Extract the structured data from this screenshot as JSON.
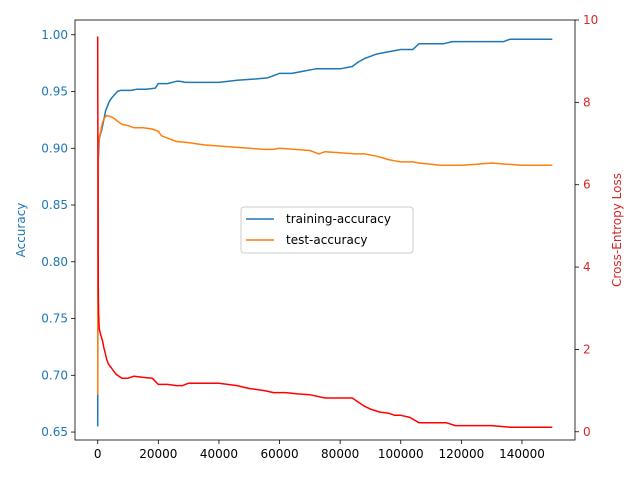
{
  "chart_data": {
    "type": "line",
    "title": "",
    "xlabel": "",
    "x_ticks": [
      0,
      20000,
      40000,
      60000,
      80000,
      100000,
      120000,
      140000
    ],
    "xlim": [
      -7500,
      157500
    ],
    "y_left": {
      "label": "Accuracy",
      "color": "#1f77b4",
      "ylim": [
        0.643,
        1.013
      ],
      "ticks": [
        "0.65",
        "0.70",
        "0.75",
        "0.80",
        "0.85",
        "0.90",
        "0.95",
        "1.00"
      ]
    },
    "y_right": {
      "label": "Cross-Entropy Loss",
      "color": "#d62728",
      "ylim": [
        -0.2,
        10.0
      ],
      "ticks": [
        "0",
        "2",
        "4",
        "6",
        "8",
        "10"
      ]
    },
    "series": [
      {
        "name": "training-accuracy",
        "axis": "left",
        "color": "#1f77b4",
        "x": [
          0,
          100,
          200,
          500,
          800,
          1200,
          1600,
          2000,
          2600,
          3200,
          3800,
          4500,
          5500,
          6500,
          7500,
          9000,
          11000,
          13000,
          16000,
          19000,
          20000,
          23000,
          26000,
          27000,
          29000,
          35000,
          40000,
          46000,
          52000,
          56000,
          60000,
          64000,
          68000,
          72000,
          76000,
          80000,
          84000,
          86000,
          88000,
          90000,
          92000,
          94000,
          96000,
          98000,
          100000,
          104000,
          106000,
          110000,
          114000,
          117000,
          120000,
          126000,
          130000,
          134000,
          136000,
          140000,
          145000,
          150000
        ],
        "values": [
          0.655,
          0.8,
          0.89,
          0.908,
          0.912,
          0.915,
          0.92,
          0.925,
          0.933,
          0.937,
          0.941,
          0.944,
          0.947,
          0.95,
          0.951,
          0.951,
          0.951,
          0.952,
          0.952,
          0.953,
          0.957,
          0.957,
          0.959,
          0.959,
          0.958,
          0.958,
          0.958,
          0.96,
          0.961,
          0.962,
          0.966,
          0.966,
          0.968,
          0.97,
          0.97,
          0.97,
          0.972,
          0.976,
          0.979,
          0.981,
          0.983,
          0.984,
          0.985,
          0.986,
          0.987,
          0.987,
          0.992,
          0.992,
          0.992,
          0.994,
          0.994,
          0.994,
          0.994,
          0.994,
          0.996,
          0.996,
          0.996,
          0.996
        ]
      },
      {
        "name": "test-accuracy",
        "axis": "left",
        "color": "#ff7f0e",
        "x": [
          0,
          100,
          200,
          500,
          1000,
          1500,
          2000,
          3000,
          4000,
          5000,
          6000,
          7000,
          8000,
          10000,
          12000,
          15000,
          18000,
          20000,
          21000,
          23000,
          26000,
          30000,
          35000,
          40000,
          45000,
          50000,
          55000,
          58000,
          60000,
          65000,
          70000,
          73000,
          75000,
          80000,
          85000,
          88000,
          92000,
          96000,
          98000,
          100000,
          104000,
          106000,
          110000,
          113000,
          116000,
          120000,
          125000,
          130000,
          135000,
          140000,
          145000,
          150000
        ],
        "values": [
          0.683,
          0.85,
          0.9,
          0.91,
          0.915,
          0.922,
          0.926,
          0.929,
          0.928,
          0.927,
          0.925,
          0.923,
          0.921,
          0.92,
          0.918,
          0.918,
          0.917,
          0.915,
          0.911,
          0.909,
          0.906,
          0.905,
          0.903,
          0.902,
          0.901,
          0.9,
          0.899,
          0.899,
          0.9,
          0.899,
          0.898,
          0.895,
          0.897,
          0.896,
          0.895,
          0.895,
          0.893,
          0.89,
          0.889,
          0.888,
          0.888,
          0.887,
          0.886,
          0.885,
          0.885,
          0.885,
          0.886,
          0.887,
          0.886,
          0.885,
          0.885,
          0.885
        ]
      },
      {
        "name": "loss",
        "axis": "right",
        "color": "#ff0000",
        "x": [
          0,
          100,
          200,
          300,
          500,
          800,
          1200,
          1600,
          2000,
          2500,
          3000,
          3500,
          4000,
          4500,
          5000,
          6000,
          7000,
          8000,
          10000,
          12000,
          15000,
          18000,
          20000,
          23000,
          26000,
          28000,
          30000,
          35000,
          40000,
          46000,
          50000,
          55000,
          58000,
          62000,
          66000,
          70000,
          75000,
          80000,
          84000,
          86000,
          88000,
          90000,
          93000,
          96000,
          98000,
          100000,
          103000,
          106000,
          110000,
          115000,
          118000,
          122000,
          126000,
          130000,
          136000,
          140000,
          145000,
          150000
        ],
        "values": [
          9.6,
          5.5,
          3.4,
          2.9,
          2.5,
          2.4,
          2.3,
          2.2,
          2.05,
          1.9,
          1.75,
          1.65,
          1.6,
          1.55,
          1.5,
          1.4,
          1.35,
          1.3,
          1.3,
          1.35,
          1.32,
          1.3,
          1.15,
          1.15,
          1.12,
          1.12,
          1.18,
          1.18,
          1.18,
          1.12,
          1.05,
          1.0,
          0.95,
          0.95,
          0.92,
          0.9,
          0.82,
          0.82,
          0.82,
          0.72,
          0.62,
          0.55,
          0.48,
          0.45,
          0.4,
          0.4,
          0.35,
          0.22,
          0.22,
          0.22,
          0.15,
          0.15,
          0.15,
          0.15,
          0.11,
          0.11,
          0.11,
          0.11
        ]
      }
    ],
    "legend": {
      "position": "center-right",
      "entries": [
        "training-accuracy",
        "test-accuracy"
      ]
    },
    "grid": false
  }
}
